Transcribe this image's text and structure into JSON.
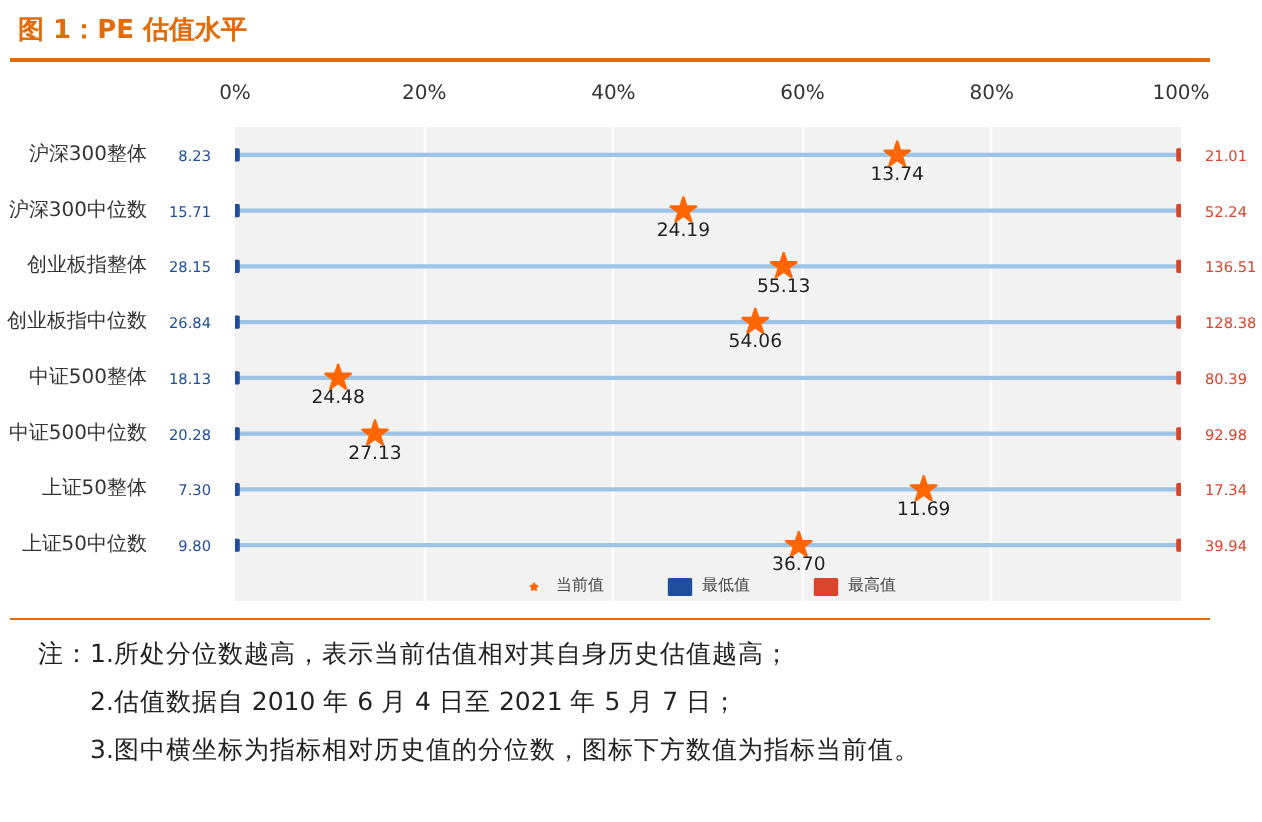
{
  "chart_data": {
    "type": "scatter",
    "orientation": "horizontal",
    "title": "图 1：PE 估值水平",
    "categories": [
      "沪深300整体",
      "沪深300中位数",
      "创业板指整体",
      "创业板指中位数",
      "中证500整体",
      "中证500中位数",
      "上证50整体",
      "上证50中位数"
    ],
    "series": [
      {
        "type": "bar",
        "color": "#9dc3e6",
        "values": [
          100,
          100,
          100,
          100,
          100,
          100,
          100,
          100
        ]
      },
      {
        "name": "当前值",
        "color": "#ff6600",
        "marker": "star",
        "values": [
          70,
          47.4,
          58,
          55,
          10.9,
          14.8,
          72.8,
          59.6
        ]
      },
      {
        "name": "最低值",
        "color": "#1f4e9c",
        "marker": "square",
        "values": [
          0,
          0,
          0,
          0,
          0,
          0,
          0,
          0
        ]
      },
      {
        "name": "最高值",
        "color": "#d9442b",
        "marker": "square",
        "values": [
          100,
          100,
          100,
          100,
          100,
          100,
          100,
          100
        ]
      }
    ],
    "xlim": [
      0,
      100
    ],
    "xticks": [
      {
        "value": 0,
        "label": "0%"
      },
      {
        "value": 20,
        "label": "20%"
      },
      {
        "value": 40,
        "label": "40%"
      },
      {
        "value": 60,
        "label": "60%"
      },
      {
        "value": 80,
        "label": "80%"
      },
      {
        "value": 100,
        "label": "100%"
      }
    ],
    "grid": "x",
    "legend": "bottom",
    "annotations": [
      {
        "text": "13.74",
        "x": 70,
        "y": "沪深300整体"
      },
      {
        "text": "24.19",
        "x": 47.4,
        "y": "沪深300中位数"
      },
      {
        "text": "55.13",
        "x": 58,
        "y": "创业板指整体"
      },
      {
        "text": "54.06",
        "x": 55,
        "y": "创业板指中位数"
      },
      {
        "text": "24.48",
        "x": 10.9,
        "y": "中证500整体"
      },
      {
        "text": "27.13",
        "x": 14.8,
        "y": "中证500中位数"
      },
      {
        "text": "11.69",
        "x": 72.8,
        "y": "上证50整体"
      },
      {
        "text": "36.70",
        "x": 59.6,
        "y": "上证50中位数"
      },
      {
        "text": "8.23",
        "x": 0,
        "y": "沪深300整体"
      },
      {
        "text": "15.71",
        "x": 0,
        "y": "沪深300中位数"
      },
      {
        "text": "28.15",
        "x": 0,
        "y": "创业板指整体"
      },
      {
        "text": "26.84",
        "x": 0,
        "y": "创业板指中位数"
      },
      {
        "text": "18.13",
        "x": 0,
        "y": "中证500整体"
      },
      {
        "text": "20.28",
        "x": 0,
        "y": "中证500中位数"
      },
      {
        "text": "7.30",
        "x": 0,
        "y": "上证50整体"
      },
      {
        "text": "9.80",
        "x": 0,
        "y": "上证50中位数"
      },
      {
        "text": "21.01",
        "x": 100,
        "y": "沪深300整体"
      },
      {
        "text": "52.24",
        "x": 100,
        "y": "沪深300中位数"
      },
      {
        "text": "136.51",
        "x": 100,
        "y": "创业板指整体"
      },
      {
        "text": "128.38",
        "x": 100,
        "y": "创业板指中位数"
      },
      {
        "text": "80.39",
        "x": 100,
        "y": "中证500整体"
      },
      {
        "text": "92.98",
        "x": 100,
        "y": "中证500中位数"
      },
      {
        "text": "17.34",
        "x": 100,
        "y": "上证50整体"
      },
      {
        "text": "39.94",
        "x": 100,
        "y": "上证50中位数"
      },
      "注：1.所处分位数越高，表示当前估值相对其自身历史估值越高；",
      "2.估值数据自 2010 年 6 月 4 日至 2021 年 5 月 7 日；",
      "3.图中横坐标为指标相对历史值的分位数，图标下方数值为指标当前值。"
    ]
  }
}
